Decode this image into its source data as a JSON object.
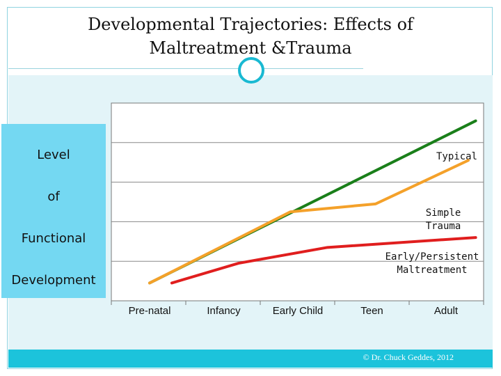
{
  "slide": {
    "title_line1": "Developmental Trajectories: Effects of",
    "title_line2": "Maltreatment &Trauma",
    "footer": "© Dr. Chuck Geddes, 2012"
  },
  "colors": {
    "accent": "#19b9d2",
    "ylabel_box": "#74d8f2",
    "typical": "#1a7f1a",
    "simple_trauma": "#f4a12a",
    "maltreatment": "#e01e1e"
  },
  "chart_data": {
    "type": "line",
    "categories": [
      "Pre-natal",
      "Infancy",
      "Early Child",
      "Teen",
      "Adult"
    ],
    "ylabel_lines": [
      "Level",
      "of",
      "Functional",
      "Development"
    ],
    "xlabel": "",
    "ylim": [
      0,
      5
    ],
    "grid": true,
    "series": [
      {
        "name": "Typical",
        "label_lines": [
          "Typical"
        ],
        "color": "#1a7f1a",
        "x": [
          0,
          4.4
        ],
        "y": [
          0.45,
          4.55
        ]
      },
      {
        "name": "Simple Trauma",
        "label_lines": [
          "Simple",
          "Trauma"
        ],
        "color": "#f4a12a",
        "x": [
          0,
          1.9,
          3.05,
          4.3
        ],
        "y": [
          0.45,
          2.25,
          2.45,
          3.55
        ]
      },
      {
        "name": "Early/Persistent Maltreatment",
        "label_lines": [
          "Early/Persistent",
          "Maltreatment"
        ],
        "color": "#e01e1e",
        "x": [
          0.3,
          1.2,
          2.4,
          4.4
        ],
        "y": [
          0.45,
          0.95,
          1.35,
          1.6
        ]
      }
    ]
  }
}
